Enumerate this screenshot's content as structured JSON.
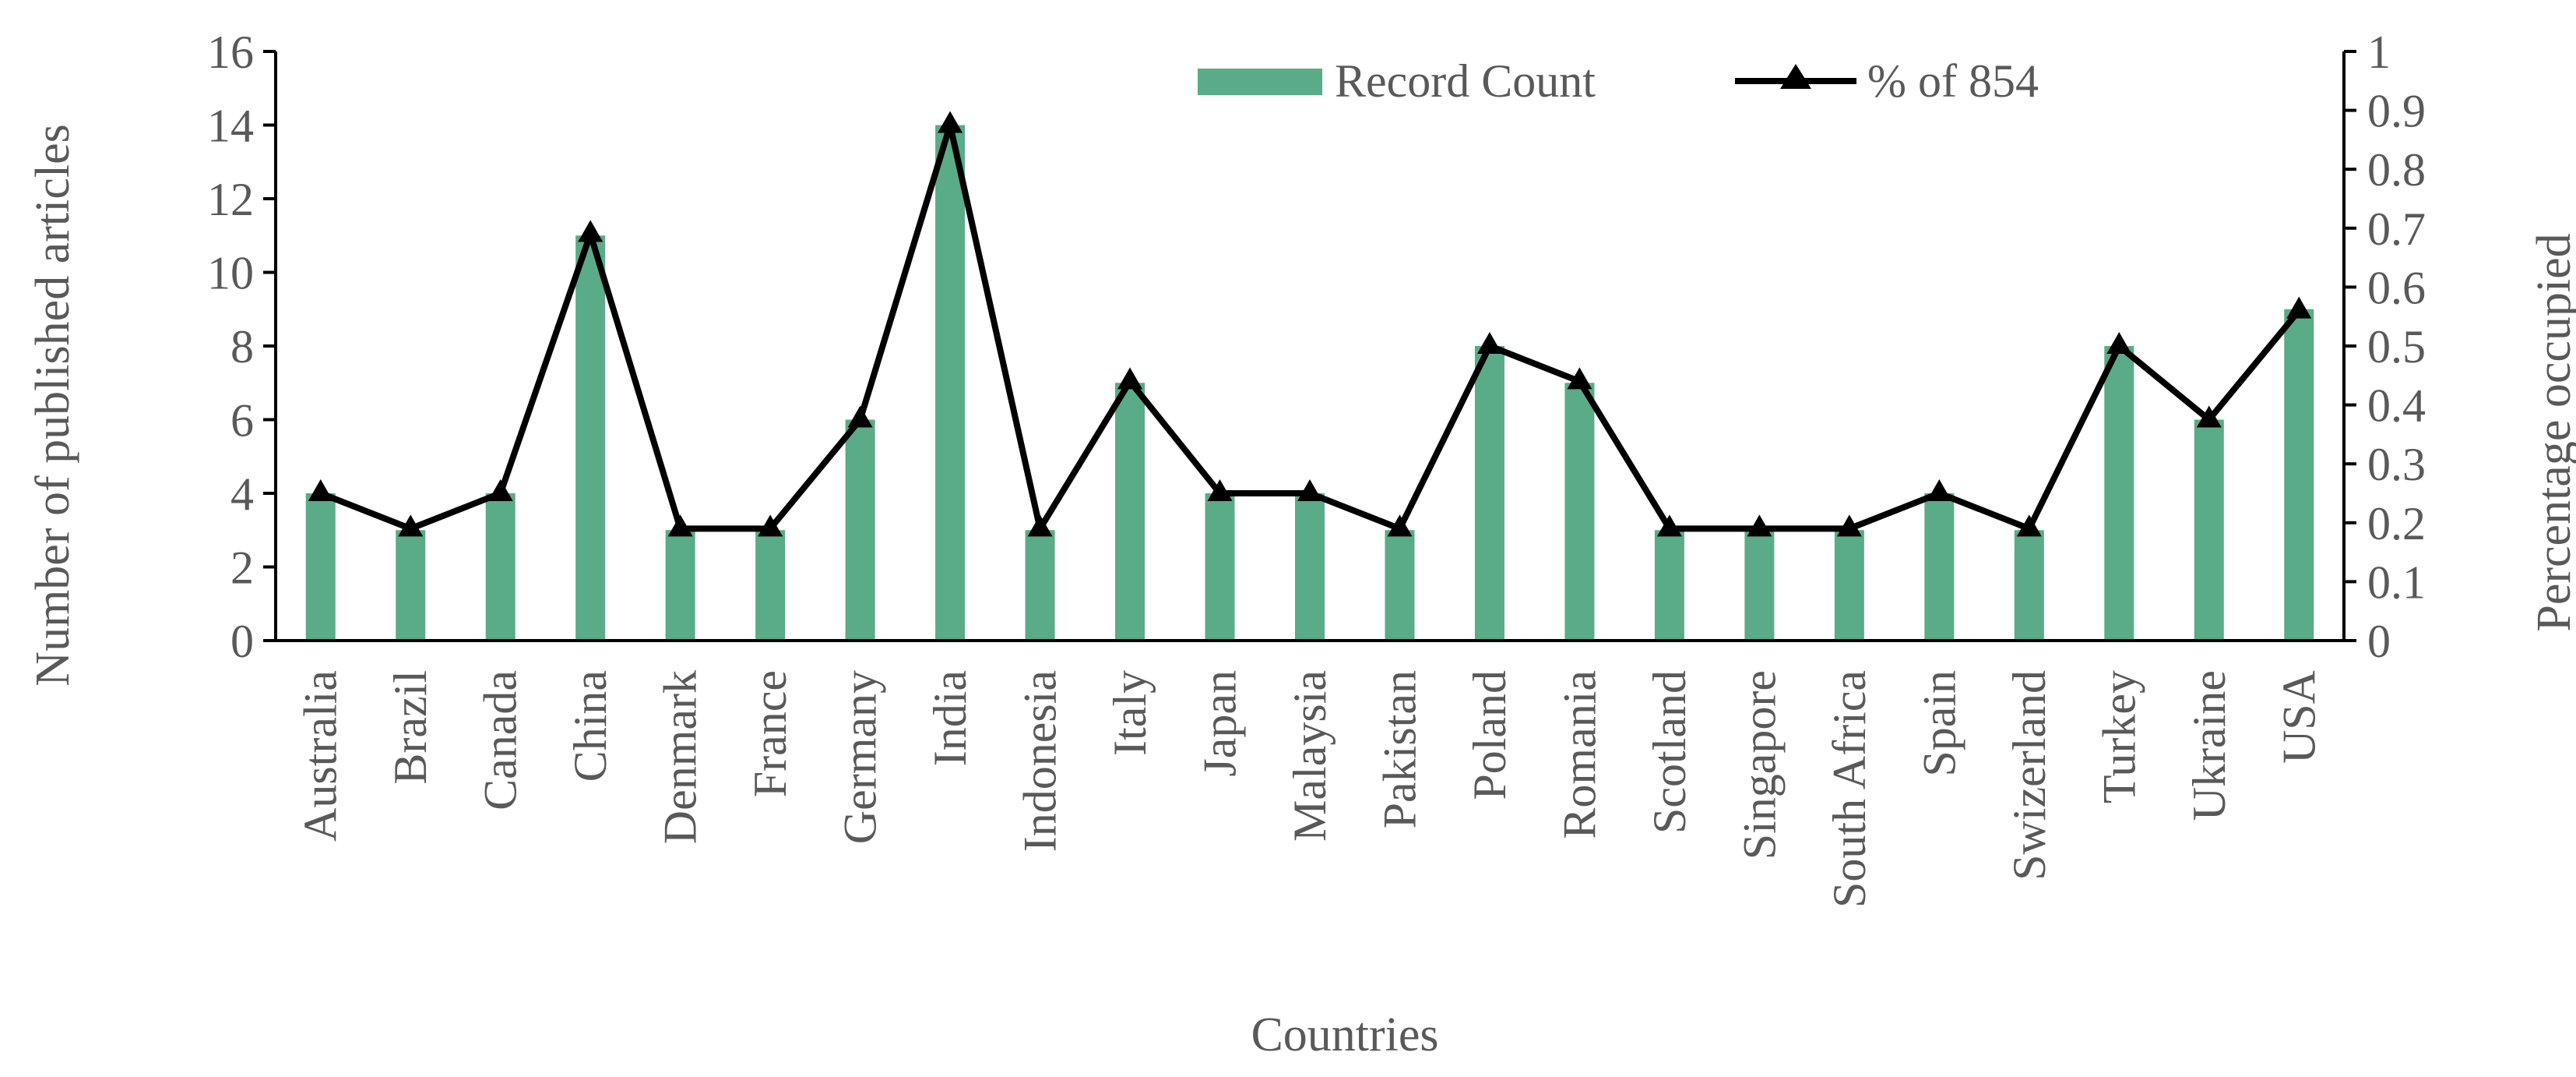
{
  "chart_data": {
    "type": "bar",
    "categories": [
      "Australia",
      "Brazil",
      "Canada",
      "China",
      "Denmark",
      "France",
      "Germany",
      "India",
      "Indonesia",
      "Italy",
      "Japan",
      "Malaysia",
      "Pakistan",
      "Poland",
      "Romania",
      "Scotland",
      "Singapore",
      "South Africa",
      "Spain",
      "Swizerland",
      "Turkey",
      "Ukraine",
      "USA"
    ],
    "series": [
      {
        "name": "Record Count",
        "type": "bar",
        "axis": "left",
        "color": "#5aab87",
        "values": [
          4,
          3,
          4,
          11,
          3,
          3,
          6,
          14,
          3,
          7,
          4,
          4,
          3,
          8,
          7,
          3,
          3,
          3,
          4,
          3,
          8,
          6,
          9
        ]
      },
      {
        "name": "% of 854",
        "type": "line",
        "axis": "right",
        "color": "#000000",
        "marker": "triangle",
        "values": [
          0.25,
          0.19,
          0.25,
          0.69,
          0.19,
          0.19,
          0.375,
          0.875,
          0.19,
          0.44,
          0.25,
          0.25,
          0.19,
          0.5,
          0.44,
          0.19,
          0.19,
          0.19,
          0.25,
          0.19,
          0.5,
          0.375,
          0.56
        ]
      }
    ],
    "xlabel": "Countries",
    "ylabel": "Number of published articles",
    "y2label": "Percentage occupied",
    "ylim": [
      0,
      16
    ],
    "yticks": [
      "0",
      "2",
      "4",
      "6",
      "8",
      "10",
      "12",
      "14",
      "16"
    ],
    "y2lim": [
      0,
      1
    ],
    "y2ticks": [
      "0",
      "0.1",
      "0.2",
      "0.3",
      "0.4",
      "0.5",
      "0.6",
      "0.7",
      "0.8",
      "0.9",
      "1"
    ],
    "grid": false,
    "legend": "top-center"
  }
}
